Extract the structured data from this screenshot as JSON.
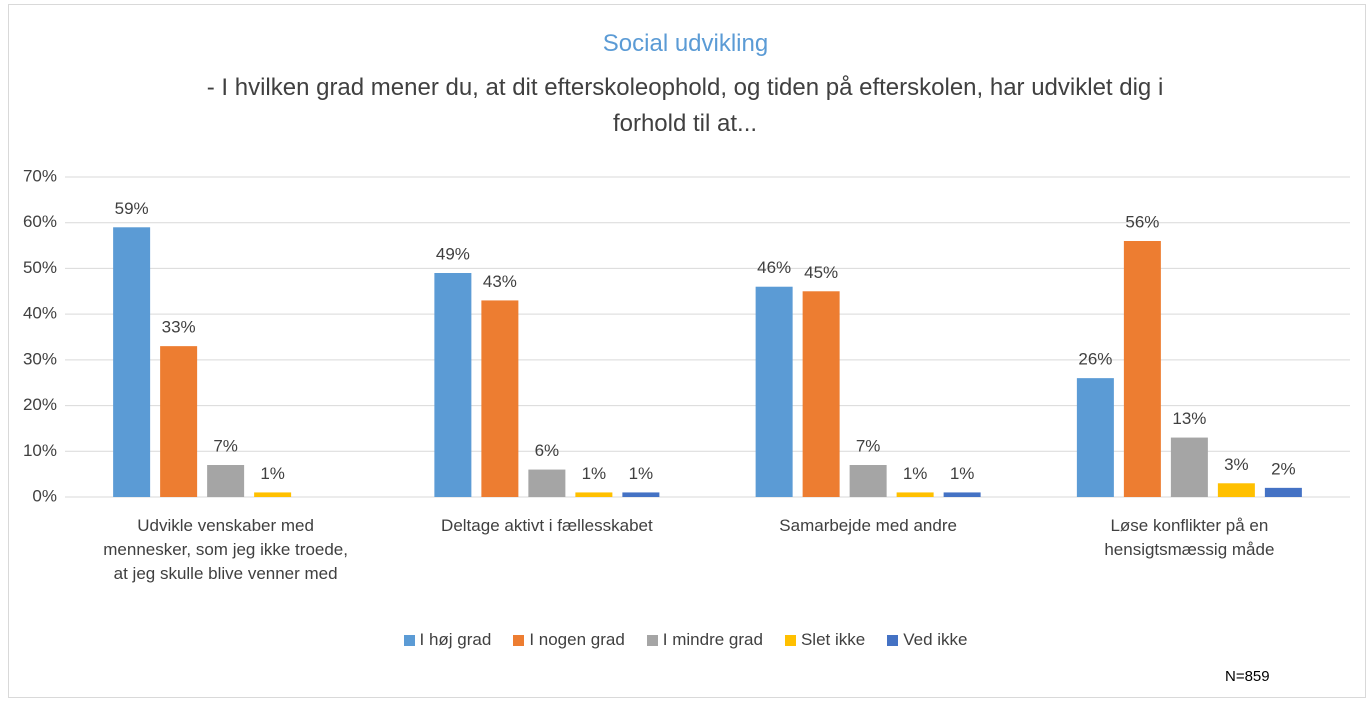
{
  "chart_data": {
    "type": "bar",
    "title": "Social udvikling",
    "subtitle": "- I hvilken grad mener du, at dit efterskoleophold, og tiden på efterskolen, har udviklet dig i forhold til at...",
    "annotation": "N=859",
    "categories": [
      "Udvikle venskaber med mennesker, som jeg ikke troede, at jeg skulle blive venner med",
      "Deltage aktivt i fællesskabet",
      "Samarbejde med andre",
      "Løse konflikter på en hensigtsmæssig måde"
    ],
    "series": [
      {
        "name": "I høj grad",
        "color": "#5b9bd5",
        "values": [
          59,
          49,
          46,
          26
        ],
        "value_labels": [
          "59%",
          "49%",
          "46%",
          "26%"
        ]
      },
      {
        "name": "I nogen grad",
        "color": "#ed7d31",
        "values": [
          33,
          43,
          45,
          56
        ],
        "value_labels": [
          "33%",
          "43%",
          "45%",
          "56%"
        ]
      },
      {
        "name": "I mindre grad",
        "color": "#a5a5a5",
        "values": [
          7,
          6,
          7,
          13
        ],
        "value_labels": [
          "7%",
          "6%",
          "7%",
          "13%"
        ]
      },
      {
        "name": "Slet ikke",
        "color": "#ffc000",
        "values": [
          1,
          1,
          1,
          3
        ],
        "value_labels": [
          "1%",
          "1%",
          "1%",
          "3%"
        ]
      },
      {
        "name": "Ved ikke",
        "color": "#4472c4",
        "values": [
          null,
          1,
          1,
          2
        ],
        "value_labels": [
          null,
          "1%",
          "1%",
          "2%"
        ]
      }
    ],
    "ylim": [
      0,
      70
    ],
    "yticks": [
      {
        "value": 0,
        "label": "0%"
      },
      {
        "value": 10,
        "label": "10%"
      },
      {
        "value": 20,
        "label": "20%"
      },
      {
        "value": 30,
        "label": "30%"
      },
      {
        "value": 40,
        "label": "40%"
      },
      {
        "value": 50,
        "label": "50%"
      },
      {
        "value": 60,
        "label": "60%"
      },
      {
        "value": 70,
        "label": "70%"
      }
    ],
    "grid": true,
    "legend": "bottom"
  }
}
